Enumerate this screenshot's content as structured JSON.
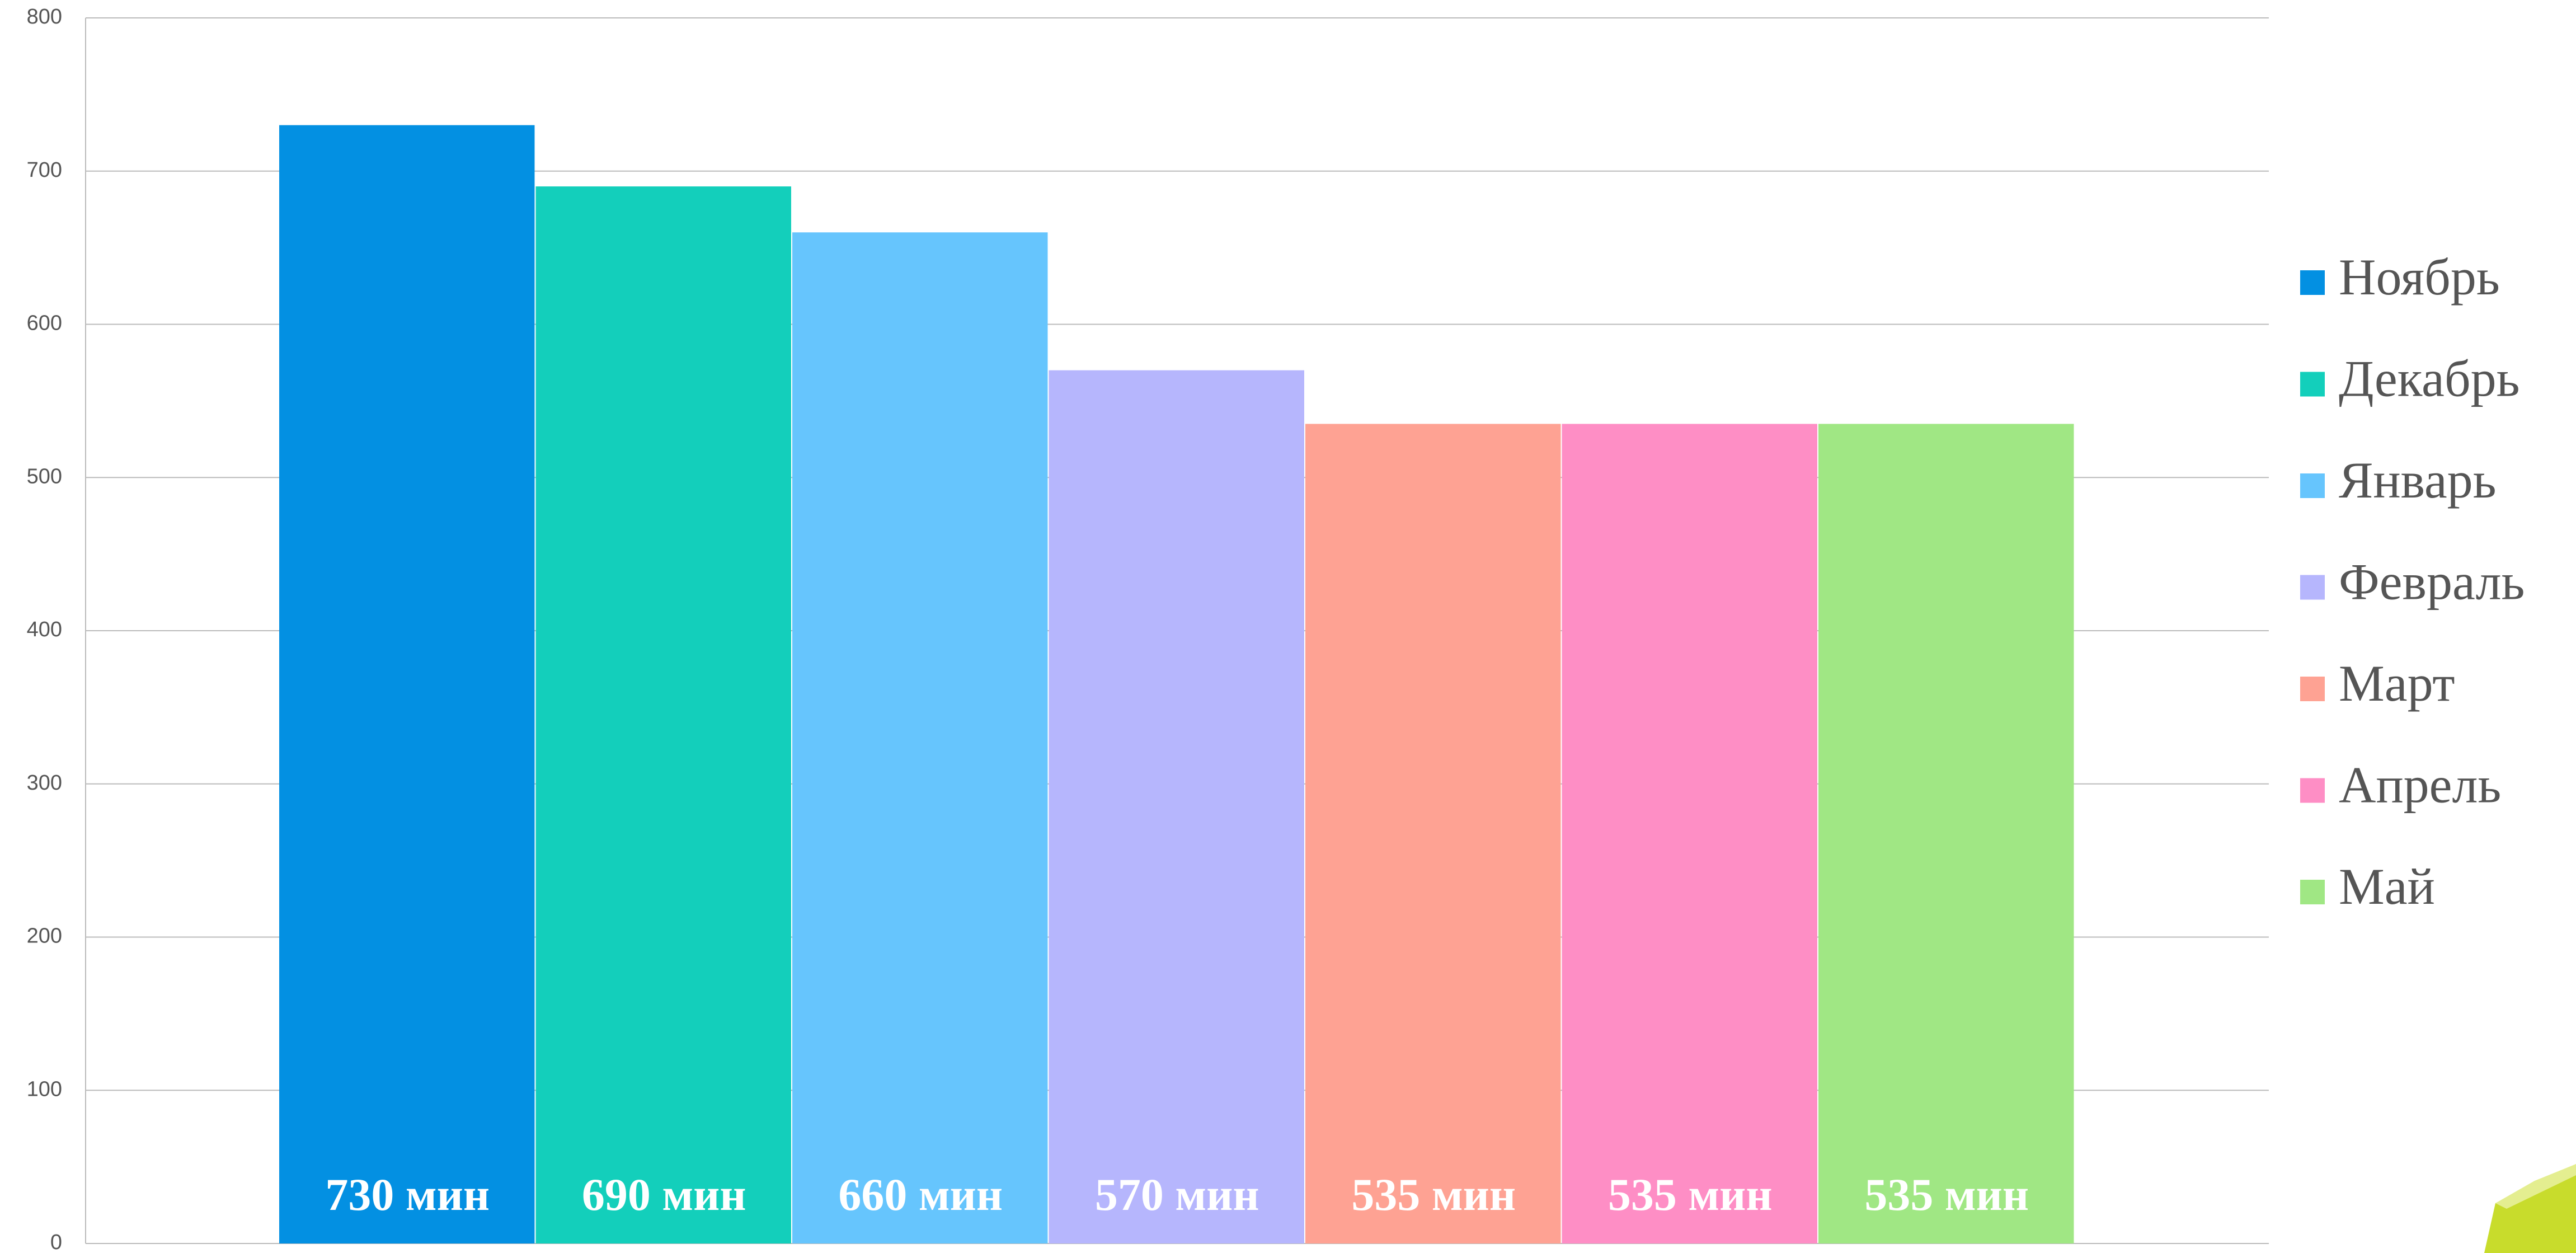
{
  "chart_data": {
    "type": "bar",
    "series": [
      {
        "name": "Ноябрь",
        "color": "#0390e2",
        "values": [
          730
        ],
        "value_labels": [
          "730 мин"
        ]
      },
      {
        "name": "Декабрь",
        "color": "#13cfbb",
        "values": [
          690
        ],
        "value_labels": [
          "690 мин"
        ]
      },
      {
        "name": "Январь",
        "color": "#66c5fd",
        "values": [
          660
        ],
        "value_labels": [
          "660 мин"
        ]
      },
      {
        "name": "Февраль",
        "color": "#b6b6fd",
        "values": [
          570
        ],
        "value_labels": [
          "570 мин"
        ]
      },
      {
        "name": "Март",
        "color": "#fea293",
        "values": [
          535
        ],
        "value_labels": [
          "535 мин"
        ]
      },
      {
        "name": "Апрель",
        "color": "#fe8ec5",
        "values": [
          535
        ],
        "value_labels": [
          "535 мин"
        ]
      },
      {
        "name": "Май",
        "color": "#a0e784",
        "values": [
          535
        ],
        "value_labels": [
          "535 мин"
        ]
      }
    ],
    "ylim": [
      0,
      800
    ],
    "yticks": [
      0,
      100,
      200,
      300,
      400,
      500,
      600,
      700,
      800
    ],
    "grid": true,
    "legend": "right"
  }
}
